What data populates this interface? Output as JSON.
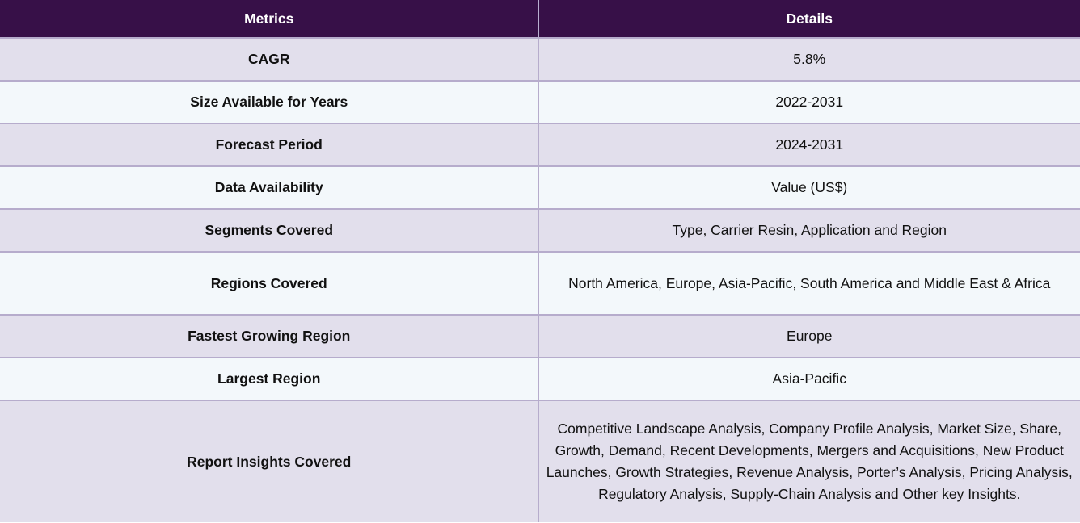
{
  "table": {
    "headers": [
      "Metrics",
      "Details"
    ],
    "rows": [
      {
        "metric": "CAGR",
        "details": "5.8%"
      },
      {
        "metric": "Size Available for Years",
        "details": "2022-2031"
      },
      {
        "metric": "Forecast Period",
        "details": "2024-2031"
      },
      {
        "metric": "Data Availability",
        "details": "Value (US$)"
      },
      {
        "metric": "Segments Covered",
        "details": "Type, Carrier Resin, Application and Region"
      },
      {
        "metric": "Regions Covered",
        "details": "North America, Europe, Asia-Pacific, South America and Middle East & Africa"
      },
      {
        "metric": "Fastest Growing Region",
        "details": "Europe"
      },
      {
        "metric": "Largest Region",
        "details": "Asia-Pacific"
      },
      {
        "metric": "Report Insights Covered",
        "details": "Competitive Landscape Analysis, Company Profile Analysis, Market Size, Share, Growth, Demand, Recent Developments, Mergers and Acquisitions, New Product Launches, Growth Strategies, Revenue Analysis, Porter’s Analysis, Pricing Analysis, Regulatory Analysis, Supply-Chain Analysis and Other key Insights."
      }
    ]
  },
  "colors": {
    "header_bg": "#371048",
    "row_odd_bg": "#e2dfec",
    "row_even_bg": "#f3f8fb",
    "border": "#b6accc"
  }
}
